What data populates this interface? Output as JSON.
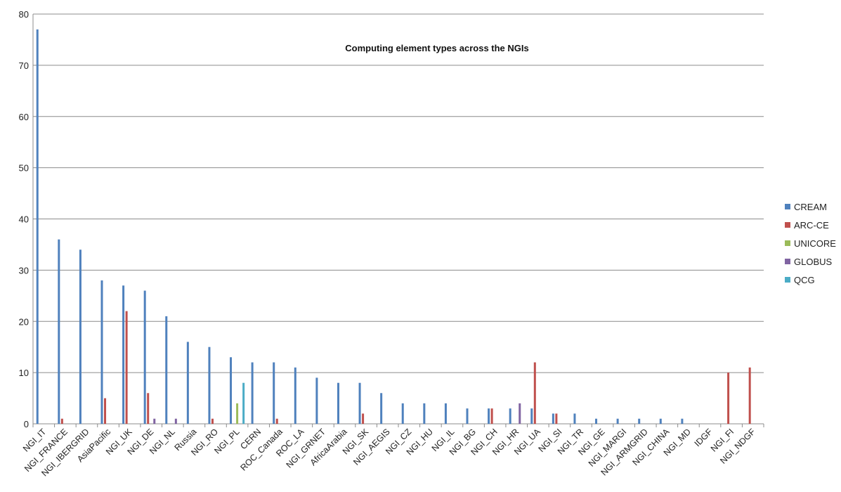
{
  "chart_data": {
    "type": "bar",
    "title": "Computing element types across the NGIs",
    "xlabel": "",
    "ylabel": "",
    "ylim": [
      0,
      80
    ],
    "yticks": [
      0,
      10,
      20,
      30,
      40,
      50,
      60,
      70,
      80
    ],
    "grid": true,
    "legend_position": "right",
    "categories": [
      "NGI_IT",
      "NGI_FRANCE",
      "NGI_IBERGRID",
      "AsiaPacific",
      "NGI_UK",
      "NGI_DE",
      "NGI_NL",
      "Russia",
      "NGI_RO",
      "NGI_PL",
      "CERN",
      "ROC_Canada",
      "ROC_LA",
      "NGI_GRNET",
      "AfricaArabia",
      "NGI_SK",
      "NGI_AEGIS",
      "NGI_CZ",
      "NGI_HU",
      "NGI_IL",
      "NGI_BG",
      "NGI_CH",
      "NGI_HR",
      "NGI_UA",
      "NGI_SI",
      "NGI_TR",
      "NGI_GE",
      "NGI_MARGI",
      "NGI_ARMGRID",
      "NGI_CHINA",
      "NGI_MD",
      "IDGF",
      "NGI_FI",
      "NGI_NDGF"
    ],
    "series": [
      {
        "name": "CREAM",
        "color": "#4F81BD",
        "values": [
          77,
          36,
          34,
          28,
          27,
          26,
          21,
          16,
          15,
          13,
          12,
          12,
          11,
          9,
          8,
          8,
          6,
          4,
          4,
          4,
          3,
          3,
          3,
          3,
          2,
          2,
          1,
          1,
          1,
          1,
          1,
          0,
          0,
          0
        ]
      },
      {
        "name": "ARC-CE",
        "color": "#C0504D",
        "values": [
          0,
          1,
          0,
          5,
          22,
          6,
          0,
          0,
          1,
          0,
          0,
          1,
          0,
          0,
          0,
          2,
          0,
          0,
          0,
          0,
          0,
          3,
          0,
          12,
          2,
          0,
          0,
          0,
          0,
          0,
          0,
          0,
          10,
          11
        ]
      },
      {
        "name": "UNICORE",
        "color": "#9BBB59",
        "values": [
          0,
          0,
          0,
          0,
          0,
          0,
          0,
          0,
          0,
          4,
          0,
          0,
          0,
          0,
          0,
          0,
          0,
          0,
          0,
          0,
          0,
          0,
          0,
          0,
          0,
          0,
          0,
          0,
          0,
          0,
          0,
          0,
          0,
          0
        ]
      },
      {
        "name": "GLOBUS",
        "color": "#8064A2",
        "values": [
          0,
          0,
          0,
          0,
          0,
          1,
          1,
          0,
          0,
          0,
          0,
          0,
          0,
          0,
          0,
          0,
          0,
          0,
          0,
          0,
          0,
          0,
          4,
          0,
          0,
          0,
          0,
          0,
          0,
          0,
          0,
          0,
          0,
          0
        ]
      },
      {
        "name": "QCG",
        "color": "#4BACC6",
        "values": [
          0,
          0,
          0,
          0,
          0,
          0,
          0,
          0,
          0,
          8,
          0,
          0,
          0,
          0,
          0,
          0,
          0,
          0,
          0,
          0,
          0,
          0,
          0,
          0,
          0,
          0,
          0,
          0,
          0,
          0,
          0,
          0,
          0,
          0
        ]
      }
    ]
  }
}
